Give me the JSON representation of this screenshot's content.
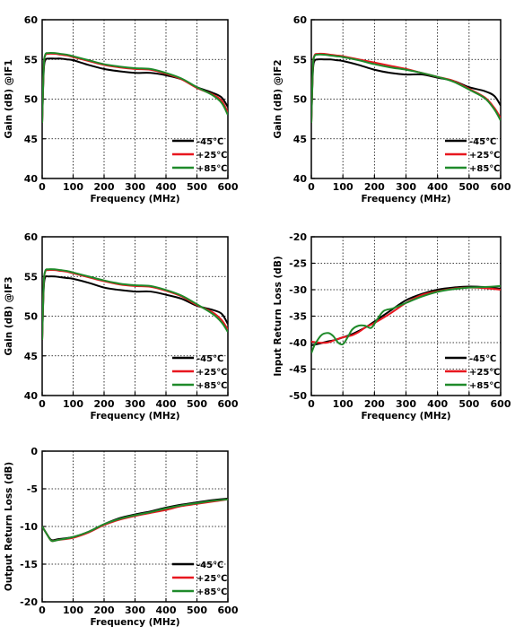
{
  "series_colors": [
    "#000000",
    "#e8171f",
    "#1f8a2a"
  ],
  "chart_data": [
    {
      "type": "line",
      "xlabel": "Frequency (MHz)",
      "ylabel": "Gain (dB) @IF1",
      "xlim": [
        0,
        600
      ],
      "ylim": [
        40,
        60
      ],
      "xticks": [
        0,
        100,
        200,
        300,
        400,
        500,
        600
      ],
      "yticks": [
        40,
        45,
        50,
        55,
        60
      ],
      "grid": true,
      "legend": "bottom-right",
      "series": [
        {
          "name": "-45℃",
          "x": [
            0,
            5,
            10,
            20,
            40,
            60,
            80,
            100,
            150,
            200,
            250,
            300,
            350,
            400,
            450,
            500,
            550,
            580,
            600
          ],
          "y": [
            47,
            53.5,
            54.9,
            55.1,
            55.1,
            55.1,
            55.0,
            54.9,
            54.3,
            53.8,
            53.5,
            53.3,
            53.3,
            53.0,
            52.5,
            51.5,
            50.8,
            50.2,
            49
          ]
        },
        {
          "name": "+25℃",
          "x": [
            0,
            5,
            10,
            20,
            40,
            60,
            80,
            100,
            150,
            200,
            250,
            300,
            350,
            400,
            450,
            500,
            550,
            580,
            600
          ],
          "y": [
            47,
            54,
            55.5,
            55.7,
            55.7,
            55.6,
            55.5,
            55.3,
            54.8,
            54.3,
            54.0,
            53.8,
            53.7,
            53.2,
            52.5,
            51.4,
            50.6,
            49.8,
            48.3
          ]
        },
        {
          "name": "+85℃",
          "x": [
            0,
            5,
            10,
            20,
            40,
            60,
            80,
            100,
            150,
            200,
            250,
            300,
            350,
            400,
            450,
            500,
            550,
            580,
            600
          ],
          "y": [
            47,
            54,
            55.6,
            55.8,
            55.8,
            55.7,
            55.6,
            55.4,
            54.9,
            54.4,
            54.1,
            53.9,
            53.8,
            53.3,
            52.6,
            51.5,
            50.5,
            49.5,
            48
          ]
        }
      ]
    },
    {
      "type": "line",
      "xlabel": "Frequency (MHz)",
      "ylabel": "Gain (dB) @IF2",
      "xlim": [
        0,
        600
      ],
      "ylim": [
        40,
        60
      ],
      "xticks": [
        0,
        100,
        200,
        300,
        400,
        500,
        600
      ],
      "yticks": [
        40,
        45,
        50,
        55,
        60
      ],
      "grid": true,
      "legend": "bottom-right",
      "series": [
        {
          "name": "-45℃",
          "x": [
            0,
            5,
            10,
            20,
            40,
            60,
            80,
            100,
            150,
            200,
            250,
            300,
            350,
            400,
            450,
            500,
            550,
            580,
            600
          ],
          "y": [
            47,
            53.5,
            54.8,
            55.0,
            55.0,
            55.0,
            54.9,
            54.8,
            54.3,
            53.7,
            53.3,
            53.1,
            53.1,
            52.7,
            52.3,
            51.5,
            51.0,
            50.4,
            49.2
          ]
        },
        {
          "name": "+25℃",
          "x": [
            0,
            5,
            10,
            20,
            40,
            60,
            80,
            100,
            150,
            200,
            250,
            300,
            350,
            400,
            450,
            500,
            550,
            580,
            600
          ],
          "y": [
            47,
            54,
            55.5,
            55.7,
            55.7,
            55.6,
            55.5,
            55.4,
            55.0,
            54.6,
            54.2,
            53.8,
            53.3,
            52.8,
            52.3,
            51.3,
            50.2,
            48.9,
            47.6
          ]
        },
        {
          "name": "+85℃",
          "x": [
            0,
            5,
            10,
            20,
            40,
            60,
            80,
            100,
            150,
            200,
            250,
            300,
            350,
            400,
            450,
            500,
            550,
            580,
            600
          ],
          "y": [
            47,
            54,
            55.4,
            55.6,
            55.6,
            55.5,
            55.4,
            55.3,
            54.9,
            54.4,
            54.0,
            53.7,
            53.3,
            52.8,
            52.2,
            51.2,
            50.1,
            48.7,
            47.3
          ]
        }
      ]
    },
    {
      "type": "line",
      "xlabel": "Frequency (MHz)",
      "ylabel": "Gain (dB) @IF3",
      "xlim": [
        0,
        600
      ],
      "ylim": [
        40,
        60
      ],
      "xticks": [
        0,
        100,
        200,
        300,
        400,
        500,
        600
      ],
      "yticks": [
        40,
        45,
        50,
        55,
        60
      ],
      "grid": true,
      "legend": "bottom-right",
      "series": [
        {
          "name": "-45℃",
          "x": [
            0,
            5,
            10,
            20,
            40,
            60,
            80,
            100,
            150,
            200,
            250,
            300,
            350,
            400,
            450,
            500,
            550,
            580,
            600
          ],
          "y": [
            47,
            53.5,
            54.9,
            55.0,
            55.0,
            54.9,
            54.8,
            54.7,
            54.2,
            53.6,
            53.3,
            53.1,
            53.1,
            52.7,
            52.2,
            51.3,
            50.8,
            50.3,
            49
          ]
        },
        {
          "name": "+25℃",
          "x": [
            0,
            5,
            10,
            20,
            40,
            60,
            80,
            100,
            150,
            200,
            250,
            300,
            350,
            400,
            450,
            500,
            550,
            580,
            600
          ],
          "y": [
            47,
            54,
            55.6,
            55.8,
            55.8,
            55.7,
            55.6,
            55.4,
            54.9,
            54.4,
            54.0,
            53.8,
            53.7,
            53.2,
            52.5,
            51.4,
            50.5,
            49.5,
            48.3
          ]
        },
        {
          "name": "+85℃",
          "x": [
            0,
            5,
            10,
            20,
            40,
            60,
            80,
            100,
            150,
            200,
            250,
            300,
            350,
            400,
            450,
            500,
            550,
            580,
            600
          ],
          "y": [
            47,
            54,
            55.7,
            55.9,
            55.9,
            55.8,
            55.7,
            55.5,
            55.0,
            54.5,
            54.1,
            53.9,
            53.8,
            53.3,
            52.6,
            51.5,
            50.3,
            49.2,
            48
          ]
        }
      ]
    },
    {
      "type": "line",
      "xlabel": "Frequency (MHz)",
      "ylabel": "Input Return Loss (dB)",
      "xlim": [
        0,
        600
      ],
      "ylim": [
        -50,
        -20
      ],
      "xticks": [
        0,
        100,
        200,
        300,
        400,
        500,
        600
      ],
      "yticks": [
        -50,
        -45,
        -40,
        -35,
        -30,
        -25,
        -20
      ],
      "grid": true,
      "legend": "bottom-right",
      "series": [
        {
          "name": "-45℃",
          "x": [
            0,
            25,
            50,
            75,
            100,
            125,
            150,
            175,
            200,
            250,
            300,
            350,
            400,
            450,
            500,
            550,
            600
          ],
          "y": [
            -40.5,
            -40.2,
            -39.8,
            -39.5,
            -39,
            -38.5,
            -37.8,
            -37,
            -36,
            -34,
            -32,
            -30.8,
            -30,
            -29.6,
            -29.4,
            -29.5,
            -29.8
          ]
        },
        {
          "name": "+25℃",
          "x": [
            0,
            25,
            50,
            75,
            100,
            125,
            150,
            175,
            200,
            250,
            300,
            350,
            400,
            450,
            500,
            550,
            600
          ],
          "y": [
            -39.8,
            -40,
            -40,
            -39.5,
            -39,
            -38.7,
            -38,
            -37,
            -36.3,
            -34.5,
            -32.5,
            -31,
            -30.3,
            -29.8,
            -29.6,
            -29.7,
            -30
          ]
        },
        {
          "name": "+85℃",
          "x": [
            0,
            10,
            20,
            30,
            40,
            55,
            70,
            85,
            100,
            115,
            130,
            150,
            170,
            190,
            210,
            230,
            260,
            300,
            350,
            400,
            450,
            500,
            550,
            600
          ],
          "y": [
            -42,
            -40.5,
            -39.5,
            -38.7,
            -38.3,
            -38.2,
            -38.8,
            -40,
            -40.3,
            -39,
            -37.5,
            -36.8,
            -36.8,
            -37.2,
            -35.5,
            -34,
            -33.5,
            -32.5,
            -31.3,
            -30.4,
            -29.9,
            -29.6,
            -29.5,
            -29.3
          ]
        }
      ]
    },
    {
      "type": "line",
      "xlabel": "Frequency (MHz)",
      "ylabel": "Output Return Loss (dB)",
      "xlim": [
        0,
        600
      ],
      "ylim": [
        -20,
        0
      ],
      "xticks": [
        0,
        100,
        200,
        300,
        400,
        500,
        600
      ],
      "yticks": [
        -20,
        -15,
        -10,
        -5,
        0
      ],
      "grid": true,
      "legend": "bottom-right",
      "series": [
        {
          "name": "-45℃",
          "x": [
            0,
            15,
            30,
            50,
            100,
            150,
            200,
            250,
            300,
            350,
            400,
            450,
            500,
            550,
            600
          ],
          "y": [
            -10,
            -11,
            -11.8,
            -11.7,
            -11.4,
            -10.7,
            -9.7,
            -8.9,
            -8.4,
            -8.0,
            -7.5,
            -7.1,
            -6.8,
            -6.5,
            -6.3
          ]
        },
        {
          "name": "+25℃",
          "x": [
            0,
            15,
            30,
            50,
            100,
            150,
            200,
            250,
            300,
            350,
            400,
            450,
            500,
            550,
            600
          ],
          "y": [
            -10,
            -11,
            -11.9,
            -11.8,
            -11.5,
            -10.8,
            -9.8,
            -9.1,
            -8.6,
            -8.2,
            -7.8,
            -7.3,
            -7.0,
            -6.7,
            -6.4
          ]
        },
        {
          "name": "+85℃",
          "x": [
            0,
            15,
            30,
            50,
            100,
            150,
            200,
            250,
            300,
            350,
            400,
            450,
            500,
            550,
            600
          ],
          "y": [
            -10,
            -11,
            -11.9,
            -11.8,
            -11.4,
            -10.7,
            -9.7,
            -9.0,
            -8.5,
            -8.1,
            -7.6,
            -7.2,
            -6.9,
            -6.6,
            -6.4
          ]
        }
      ]
    }
  ]
}
